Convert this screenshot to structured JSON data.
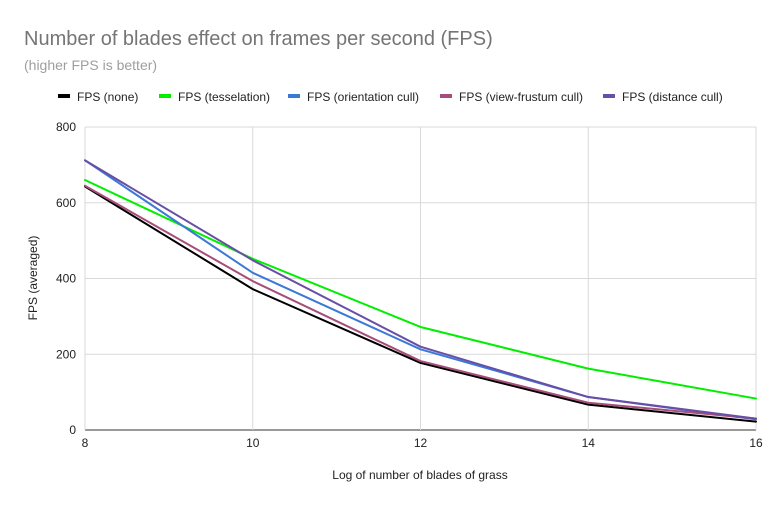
{
  "chart_data": {
    "type": "line",
    "title": "Number of blades effect on frames per second (FPS)",
    "subtitle": "(higher FPS is better)",
    "xlabel": "Log of number of blades of grass",
    "ylabel": "FPS (averaged)",
    "x": [
      8,
      10,
      12,
      14,
      16
    ],
    "xlim": [
      8,
      16
    ],
    "ylim": [
      0,
      800
    ],
    "xticks": [
      "8",
      "10",
      "12",
      "14",
      "16"
    ],
    "yticks": [
      "0",
      "200",
      "400",
      "600",
      "800"
    ],
    "grid": true,
    "legend_position": "top",
    "series": [
      {
        "name": "FPS (none)",
        "color": "#000000",
        "values": [
          643,
          372,
          177,
          67,
          22
        ]
      },
      {
        "name": "FPS (tesselation)",
        "color": "#00ee00",
        "values": [
          660,
          452,
          272,
          162,
          83
        ]
      },
      {
        "name": "FPS (orientation cull)",
        "color": "#3c78d8",
        "values": [
          712,
          415,
          213,
          87,
          28
        ]
      },
      {
        "name": "FPS (view-frustum cull)",
        "color": "#a64d79",
        "values": [
          645,
          393,
          182,
          72,
          30
        ]
      },
      {
        "name": "FPS (distance cull)",
        "color": "#674ea7",
        "values": [
          712,
          448,
          220,
          87,
          30
        ]
      }
    ]
  }
}
